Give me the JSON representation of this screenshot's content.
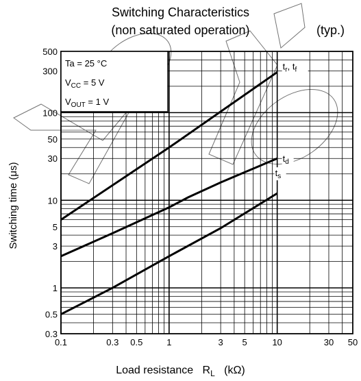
{
  "header": {
    "title": "Switching Characteristics",
    "subtitle": "(non saturated operation)",
    "note": "(typ.)"
  },
  "conditions": [
    {
      "name": "Ta",
      "value": "= 25 °C"
    },
    {
      "name": "V",
      "sub": "CC",
      "value": "= 5 V"
    },
    {
      "name": "V",
      "sub": "OUT",
      "value": "= 1 V"
    }
  ],
  "chart_data": {
    "type": "line",
    "xscale": "log",
    "yscale": "log",
    "xlim": [
      0.1,
      50
    ],
    "ylim": [
      0.3,
      500
    ],
    "grid": true,
    "xlabel": "Load resistance",
    "xlabel_symbol": "R",
    "xlabel_symbol_sub": "L",
    "xlabel_unit": "(kΩ)",
    "ylabel": "Switching time",
    "ylabel_unit": "(μs)",
    "xticks": [
      {
        "value": 0.1,
        "label": "0.1"
      },
      {
        "value": 0.3,
        "label": "0.3"
      },
      {
        "value": 0.5,
        "label": "0.5"
      },
      {
        "value": 1,
        "label": "1"
      },
      {
        "value": 3,
        "label": "3"
      },
      {
        "value": 5,
        "label": "5"
      },
      {
        "value": 10,
        "label": "10"
      },
      {
        "value": 30,
        "label": "30"
      },
      {
        "value": 50,
        "label": "50"
      }
    ],
    "yticks": [
      {
        "value": 0.3,
        "label": "0.3"
      },
      {
        "value": 0.5,
        "label": "0.5"
      },
      {
        "value": 1,
        "label": "1"
      },
      {
        "value": 3,
        "label": "3"
      },
      {
        "value": 5,
        "label": "5"
      },
      {
        "value": 10,
        "label": "10"
      },
      {
        "value": 30,
        "label": "30"
      },
      {
        "value": 50,
        "label": "50"
      },
      {
        "value": 100,
        "label": "100"
      },
      {
        "value": 300,
        "label": "300"
      },
      {
        "value": 500,
        "label": "500"
      }
    ],
    "series": [
      {
        "name": "tr, tf",
        "label_main": "t",
        "label_sub": "r",
        "label_sep": ", t",
        "label_sub2": "f",
        "x": [
          0.1,
          1,
          10
        ],
        "y": [
          6,
          40,
          290
        ]
      },
      {
        "name": "td",
        "label_main": "t",
        "label_sub": "d",
        "x": [
          0.1,
          0.3,
          1,
          1.5,
          3,
          10
        ],
        "y": [
          2.3,
          4.2,
          8.3,
          10.8,
          16,
          30
        ]
      },
      {
        "name": "ts",
        "label_main": "t",
        "label_sub": "s",
        "x": [
          0.1,
          0.3,
          1,
          3,
          10
        ],
        "y": [
          0.5,
          1.0,
          2.3,
          4.8,
          12
        ]
      }
    ]
  }
}
